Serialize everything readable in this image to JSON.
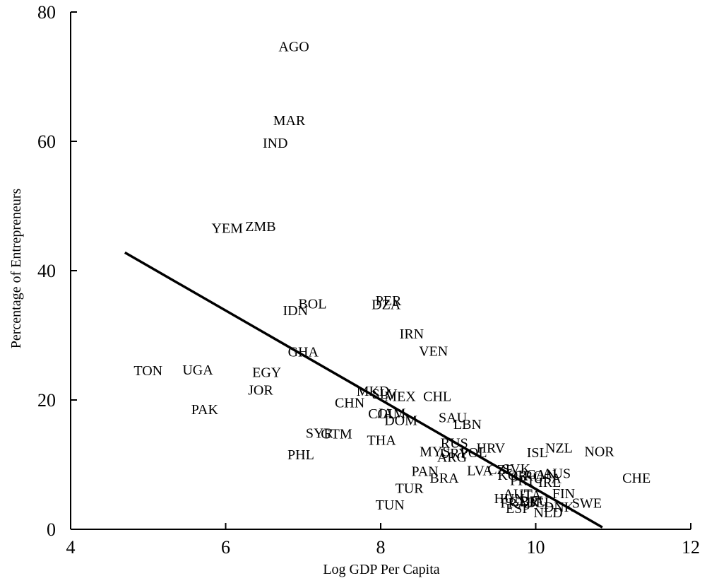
{
  "chart_data": {
    "type": "scatter",
    "title": "",
    "xlabel": "Log GDP Per Capita",
    "ylabel": "Percentage of Entrepreneurs",
    "xlim": [
      4,
      12
    ],
    "ylim": [
      0,
      80
    ],
    "xticks": [
      4,
      6,
      8,
      10,
      12
    ],
    "yticks": [
      0,
      20,
      40,
      60,
      80
    ],
    "grid": false,
    "legend": "none",
    "colors": {
      "text": "#000000",
      "line": "#000000"
    },
    "fit_line": {
      "x": [
        4.7,
        10.86
      ],
      "y": [
        42.8,
        0.3
      ]
    },
    "points": [
      {
        "label": "AGO",
        "x": 6.88,
        "y": 74.7
      },
      {
        "label": "MAR",
        "x": 6.82,
        "y": 63.3
      },
      {
        "label": "IND",
        "x": 6.64,
        "y": 59.8
      },
      {
        "label": "YEM",
        "x": 6.02,
        "y": 46.6
      },
      {
        "label": "ZMB",
        "x": 6.45,
        "y": 46.9
      },
      {
        "label": "BOL",
        "x": 7.12,
        "y": 34.9
      },
      {
        "label": "IDN",
        "x": 6.9,
        "y": 33.9
      },
      {
        "label": "PER",
        "x": 8.1,
        "y": 35.4
      },
      {
        "label": "DZA",
        "x": 8.07,
        "y": 34.8
      },
      {
        "label": "IRN",
        "x": 8.4,
        "y": 30.3
      },
      {
        "label": "VEN",
        "x": 8.68,
        "y": 27.6
      },
      {
        "label": "GHA",
        "x": 7.0,
        "y": 27.5
      },
      {
        "label": "TON",
        "x": 5.0,
        "y": 24.6
      },
      {
        "label": "UGA",
        "x": 5.64,
        "y": 24.7
      },
      {
        "label": "EGY",
        "x": 6.53,
        "y": 24.3
      },
      {
        "label": "JOR",
        "x": 6.45,
        "y": 21.6
      },
      {
        "label": "PAK",
        "x": 5.73,
        "y": 18.6
      },
      {
        "label": "MKD",
        "x": 7.9,
        "y": 21.4
      },
      {
        "label": "SLV",
        "x": 8.05,
        "y": 21.0
      },
      {
        "label": "MEX",
        "x": 8.25,
        "y": 20.6
      },
      {
        "label": "CHL",
        "x": 8.73,
        "y": 20.6
      },
      {
        "label": "CHN",
        "x": 7.6,
        "y": 19.6
      },
      {
        "label": "COL",
        "x": 8.02,
        "y": 17.9
      },
      {
        "label": "JAM",
        "x": 8.14,
        "y": 18.0
      },
      {
        "label": "DOM",
        "x": 8.26,
        "y": 16.9
      },
      {
        "label": "SAU",
        "x": 8.93,
        "y": 17.3
      },
      {
        "label": "LBN",
        "x": 9.12,
        "y": 16.3
      },
      {
        "label": "SYR",
        "x": 7.21,
        "y": 14.9
      },
      {
        "label": "GTM",
        "x": 7.43,
        "y": 14.8
      },
      {
        "label": "THA",
        "x": 8.01,
        "y": 13.8
      },
      {
        "label": "PHL",
        "x": 6.97,
        "y": 11.6
      },
      {
        "label": "RUS",
        "x": 8.95,
        "y": 13.4
      },
      {
        "label": "HRV",
        "x": 9.42,
        "y": 12.6
      },
      {
        "label": "MYS",
        "x": 8.7,
        "y": 12.1
      },
      {
        "label": "URY",
        "x": 8.95,
        "y": 11.8
      },
      {
        "label": "POL",
        "x": 9.2,
        "y": 11.9
      },
      {
        "label": "ARG",
        "x": 8.92,
        "y": 11.2
      },
      {
        "label": "ISL",
        "x": 10.02,
        "y": 11.9
      },
      {
        "label": "NZL",
        "x": 10.3,
        "y": 12.6
      },
      {
        "label": "NOR",
        "x": 10.82,
        "y": 12.1
      },
      {
        "label": "PAN",
        "x": 8.57,
        "y": 9.0
      },
      {
        "label": "BRA",
        "x": 8.82,
        "y": 8.0
      },
      {
        "label": "LVA",
        "x": 9.28,
        "y": 9.1
      },
      {
        "label": "CZE",
        "x": 9.55,
        "y": 9.3
      },
      {
        "label": "SVK",
        "x": 9.75,
        "y": 9.4
      },
      {
        "label": "KOR",
        "x": 9.7,
        "y": 8.4
      },
      {
        "label": "GRC",
        "x": 9.9,
        "y": 8.3
      },
      {
        "label": "CAN",
        "x": 10.07,
        "y": 8.5
      },
      {
        "label": "AUS",
        "x": 10.27,
        "y": 8.7
      },
      {
        "label": "USA",
        "x": 10.15,
        "y": 7.9
      },
      {
        "label": "PRT",
        "x": 9.83,
        "y": 7.6
      },
      {
        "label": "IRL",
        "x": 10.18,
        "y": 7.3
      },
      {
        "label": "CHE",
        "x": 11.3,
        "y": 8.0
      },
      {
        "label": "TUR",
        "x": 8.37,
        "y": 6.4
      },
      {
        "label": "FIN",
        "x": 10.36,
        "y": 5.6
      },
      {
        "label": "AUT",
        "x": 9.77,
        "y": 5.5
      },
      {
        "label": "ITA",
        "x": 9.93,
        "y": 5.3
      },
      {
        "label": "HUN",
        "x": 9.66,
        "y": 4.8
      },
      {
        "label": "FRA",
        "x": 9.72,
        "y": 4.1
      },
      {
        "label": "GBR",
        "x": 9.85,
        "y": 4.3
      },
      {
        "label": "DEU",
        "x": 9.98,
        "y": 4.4
      },
      {
        "label": "BEL",
        "x": 10.05,
        "y": 4.2
      },
      {
        "label": "ESP",
        "x": 9.77,
        "y": 3.3
      },
      {
        "label": "DNK",
        "x": 10.3,
        "y": 3.5
      },
      {
        "label": "NLD",
        "x": 10.16,
        "y": 2.6
      },
      {
        "label": "SWE",
        "x": 10.66,
        "y": 4.1
      },
      {
        "label": "TUN",
        "x": 8.12,
        "y": 3.8
      }
    ]
  }
}
